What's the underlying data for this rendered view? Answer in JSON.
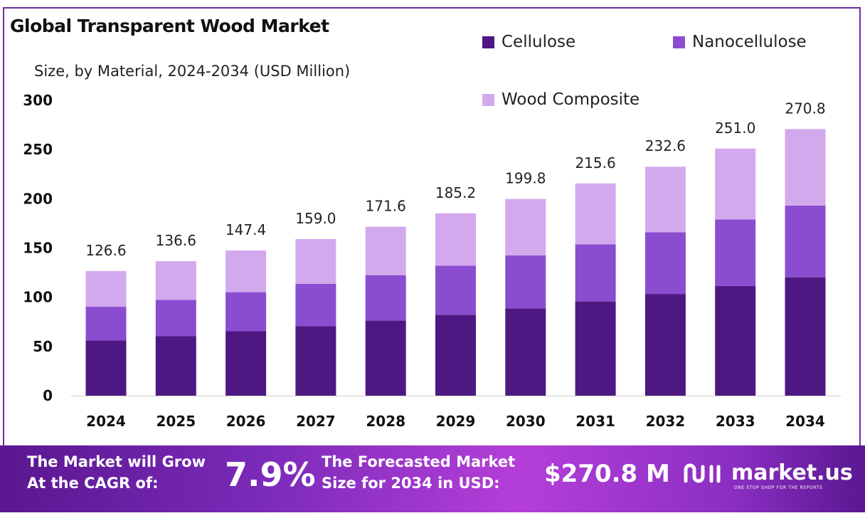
{
  "title": "Global Transparent Wood Market",
  "subtitle": "Size, by Material, 2024-2034 (USD Million)",
  "colors": {
    "cellulose": "#4e1882",
    "nanocellulose": "#8b4dcf",
    "wood_composite": "#d3a9ee",
    "frame": "#6b2fa0"
  },
  "chart_data": {
    "type": "bar",
    "stacked": true,
    "categories": [
      "2024",
      "2025",
      "2026",
      "2027",
      "2028",
      "2029",
      "2030",
      "2031",
      "2032",
      "2033",
      "2034"
    ],
    "series": [
      {
        "name": "Cellulose",
        "values": [
          56.2,
          60.6,
          65.4,
          70.6,
          76.2,
          82.2,
          88.7,
          95.7,
          103.3,
          111.4,
          120.2
        ]
      },
      {
        "name": "Nanocellulose",
        "values": [
          34.1,
          36.8,
          39.7,
          42.9,
          46.2,
          49.9,
          53.8,
          58.1,
          62.7,
          67.6,
          72.9
        ]
      },
      {
        "name": "Wood Composite",
        "values": [
          36.3,
          39.2,
          42.3,
          45.5,
          49.2,
          53.1,
          57.3,
          61.8,
          66.6,
          72.0,
          77.7
        ]
      }
    ],
    "totals": [
      "126.6",
      "136.6",
      "147.4",
      "159.0",
      "171.6",
      "185.2",
      "199.8",
      "215.6",
      "232.6",
      "251.0",
      "270.8"
    ],
    "yticks": [
      "0",
      "50",
      "100",
      "150",
      "200",
      "250",
      "300"
    ],
    "ylim": [
      0,
      300
    ],
    "legend_position": "top-right"
  },
  "footer": {
    "cagr_label_1": "The Market will Grow",
    "cagr_label_2": "At the CAGR of:",
    "cagr_value": "7.9%",
    "forecast_label_1": "The Forecasted Market",
    "forecast_label_2": "Size for 2034 in USD:",
    "forecast_value": "$270.8 M",
    "brand": "market.us",
    "tagline": "ONE STOP SHOP FOR THE REPORTS"
  }
}
